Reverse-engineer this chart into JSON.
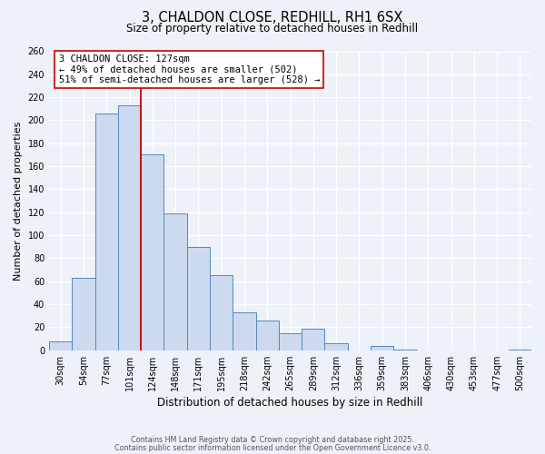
{
  "title": "3, CHALDON CLOSE, REDHILL, RH1 6SX",
  "subtitle": "Size of property relative to detached houses in Redhill",
  "xlabel": "Distribution of detached houses by size in Redhill",
  "ylabel": "Number of detached properties",
  "bin_labels": [
    "30sqm",
    "54sqm",
    "77sqm",
    "101sqm",
    "124sqm",
    "148sqm",
    "171sqm",
    "195sqm",
    "218sqm",
    "242sqm",
    "265sqm",
    "289sqm",
    "312sqm",
    "336sqm",
    "359sqm",
    "383sqm",
    "406sqm",
    "430sqm",
    "453sqm",
    "477sqm",
    "500sqm"
  ],
  "bin_values": [
    8,
    63,
    206,
    213,
    170,
    119,
    90,
    65,
    33,
    26,
    15,
    19,
    6,
    0,
    4,
    1,
    0,
    0,
    0,
    0,
    1
  ],
  "bar_facecolor": "#ccd9ee",
  "bar_edgecolor": "#5588bb",
  "vline_color": "#cc0000",
  "annotation_text": "3 CHALDON CLOSE: 127sqm\n← 49% of detached houses are smaller (502)\n51% of semi-detached houses are larger (528) →",
  "annotation_box_edgecolor": "#cc0000",
  "annotation_box_facecolor": "#ffffff",
  "ylim": [
    0,
    260
  ],
  "yticks": [
    0,
    20,
    40,
    60,
    80,
    100,
    120,
    140,
    160,
    180,
    200,
    220,
    240,
    260
  ],
  "footer1": "Contains HM Land Registry data © Crown copyright and database right 2025.",
  "footer2": "Contains public sector information licensed under the Open Government Licence v3.0.",
  "background_color": "#edf1f8",
  "grid_color": "#ffffff",
  "title_fontsize": 10.5,
  "subtitle_fontsize": 8.5,
  "ylabel_fontsize": 8.0,
  "xlabel_fontsize": 8.5,
  "tick_fontsize": 7.0,
  "annotation_fontsize": 7.5,
  "footer_fontsize": 5.8
}
